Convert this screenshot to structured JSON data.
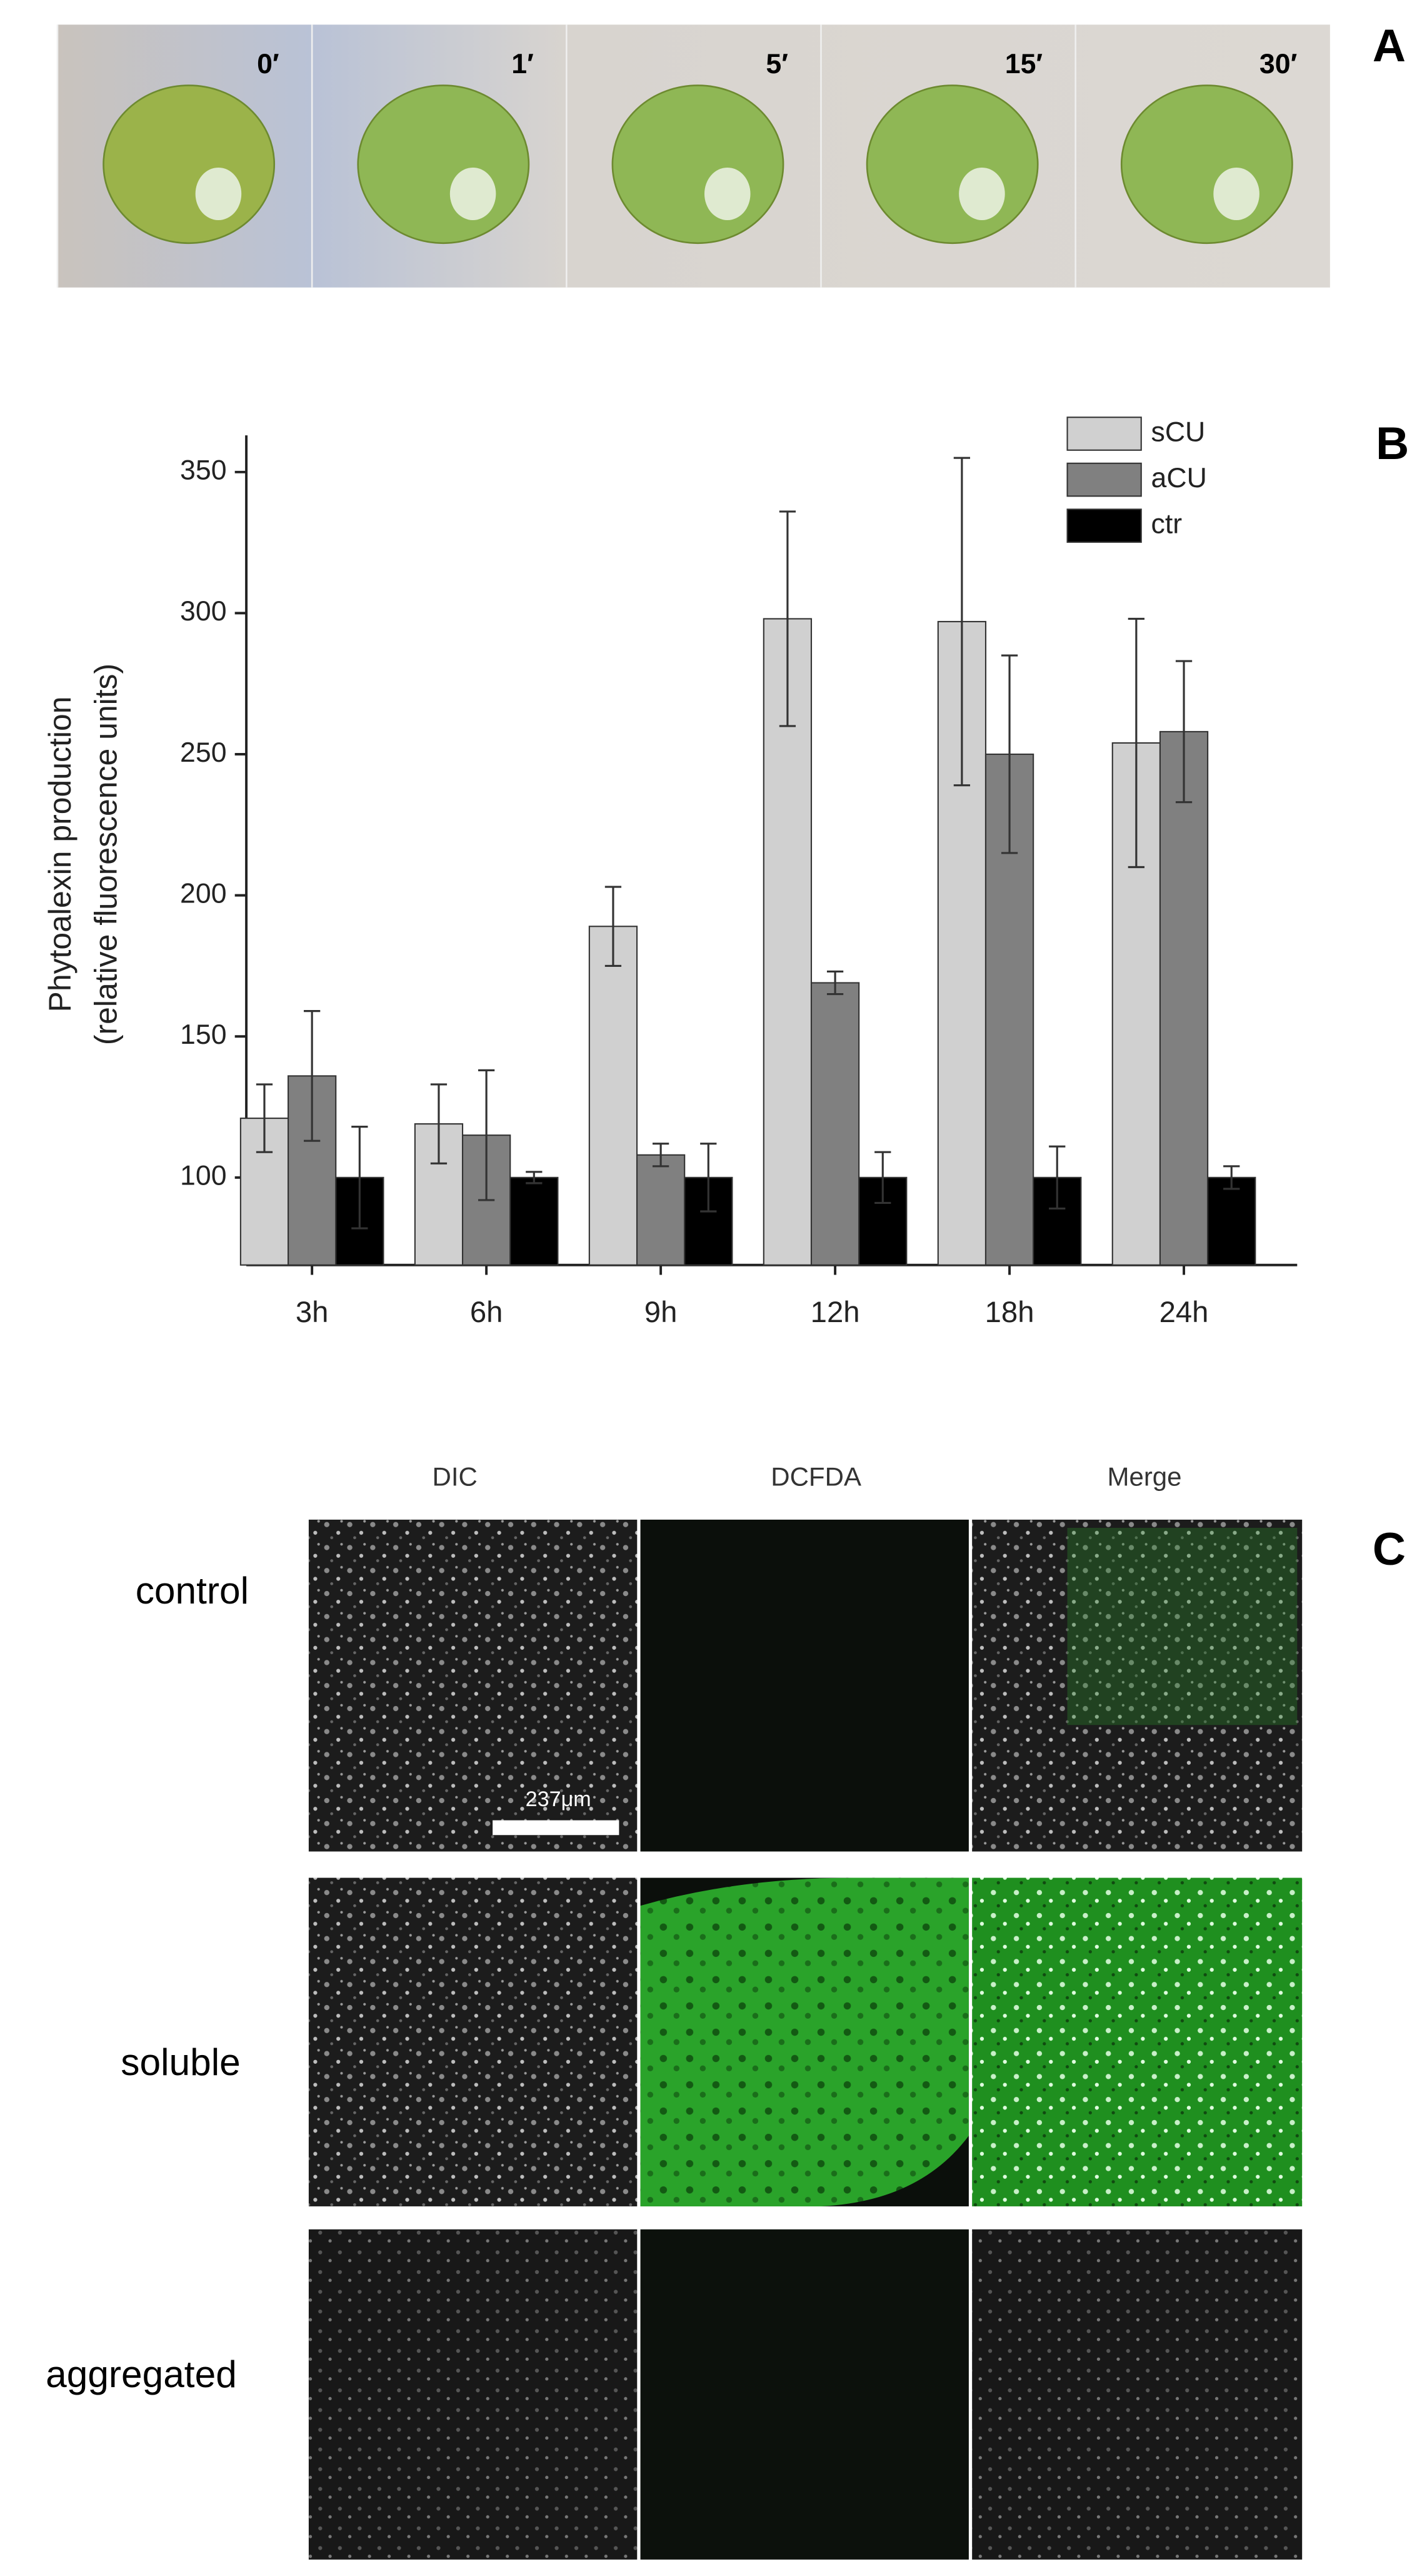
{
  "panel_labels": [
    "A",
    "B",
    "C"
  ],
  "panel_a": {
    "times": [
      "0′",
      "1′",
      "5′",
      "15′",
      "30′"
    ]
  },
  "chart_data": {
    "type": "bar",
    "y_label": [
      "Phytoalexin production",
      "(relative fluorescence units)"
    ],
    "categories": [
      "3h",
      "6h",
      "9h",
      "12h",
      "18h",
      "24h"
    ],
    "series": [
      {
        "name": "sCU",
        "color": "#d0d0d0",
        "values": [
          121,
          119,
          189,
          298,
          297,
          254
        ],
        "errors": [
          12,
          14,
          14,
          38,
          58,
          44
        ]
      },
      {
        "name": "aCU",
        "color": "#808080",
        "values": [
          136,
          115,
          108,
          169,
          250,
          258
        ],
        "errors": [
          23,
          23,
          4,
          4,
          35,
          25
        ]
      },
      {
        "name": "ctr",
        "color": "#000000",
        "values": [
          100,
          100,
          100,
          100,
          100,
          100
        ],
        "errors": [
          18,
          2,
          12,
          9,
          11,
          4
        ]
      }
    ],
    "ylim": [
      69,
      363
    ],
    "yticks": [
      100,
      150,
      200,
      250,
      300,
      350
    ],
    "grid": false,
    "legend": "top-right"
  },
  "panel_c": {
    "columns": [
      "DIC",
      "DCFDA",
      "Merge"
    ],
    "rows": [
      "control",
      "soluble",
      "aggregated"
    ],
    "scale_bar": "237μm"
  }
}
